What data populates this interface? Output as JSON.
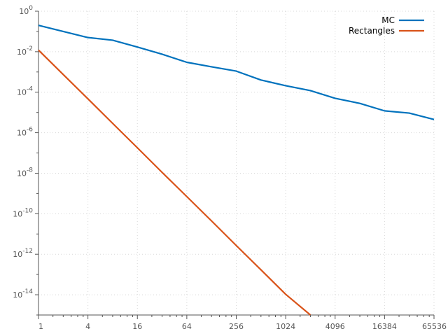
{
  "chart_data": {
    "type": "line",
    "title": "",
    "xlabel": "",
    "ylabel": "",
    "x_scale": "log2",
    "y_scale": "log10",
    "xlim": [
      1,
      65536
    ],
    "ylim": [
      1e-15,
      1
    ],
    "grid": true,
    "legend_position": "top-right",
    "x_ticks": [
      {
        "value": 1,
        "label": "1"
      },
      {
        "value": 4,
        "label": "4"
      },
      {
        "value": 16,
        "label": "16"
      },
      {
        "value": 64,
        "label": "64"
      },
      {
        "value": 256,
        "label": "256"
      },
      {
        "value": 1024,
        "label": "1024"
      },
      {
        "value": 4096,
        "label": "4096"
      },
      {
        "value": 16384,
        "label": "16384"
      },
      {
        "value": 65536,
        "label": "65536"
      }
    ],
    "y_ticks": [
      {
        "exp": 0,
        "base": "10",
        "power": "0"
      },
      {
        "exp": -2,
        "base": "10",
        "power": "-2"
      },
      {
        "exp": -4,
        "base": "10",
        "power": "-4"
      },
      {
        "exp": -6,
        "base": "10",
        "power": "-6"
      },
      {
        "exp": -8,
        "base": "10",
        "power": "-8"
      },
      {
        "exp": -10,
        "base": "10",
        "power": "-10"
      },
      {
        "exp": -12,
        "base": "10",
        "power": "-12"
      },
      {
        "exp": -14,
        "base": "10",
        "power": "-14"
      }
    ],
    "series": [
      {
        "name": "MC",
        "color": "#0072BD",
        "points": [
          [
            1,
            0.2
          ],
          [
            2,
            0.1
          ],
          [
            4,
            0.05
          ],
          [
            8,
            0.037
          ],
          [
            16,
            0.017
          ],
          [
            32,
            0.0075
          ],
          [
            64,
            0.003
          ],
          [
            128,
            0.0018
          ],
          [
            256,
            0.0011
          ],
          [
            512,
            0.0004
          ],
          [
            1024,
            0.00021
          ],
          [
            2048,
            0.00012
          ],
          [
            4096,
            5e-05
          ],
          [
            8192,
            2.8e-05
          ],
          [
            16384,
            1.2e-05
          ],
          [
            32768,
            9.3e-06
          ],
          [
            65536,
            4.5e-06
          ]
        ]
      },
      {
        "name": "Rectangles",
        "color": "#D95319",
        "points": [
          [
            1,
            0.012
          ],
          [
            2,
            0.00075
          ],
          [
            4,
            4.7e-05
          ],
          [
            8,
            2.9e-06
          ],
          [
            16,
            1.8e-07
          ],
          [
            32,
            1.1e-08
          ],
          [
            64,
            7e-10
          ],
          [
            128,
            4.4e-11
          ],
          [
            256,
            2.7e-12
          ],
          [
            512,
            1.7e-13
          ],
          [
            1024,
            1.05e-14
          ],
          [
            2048,
            1e-15
          ]
        ]
      }
    ]
  }
}
